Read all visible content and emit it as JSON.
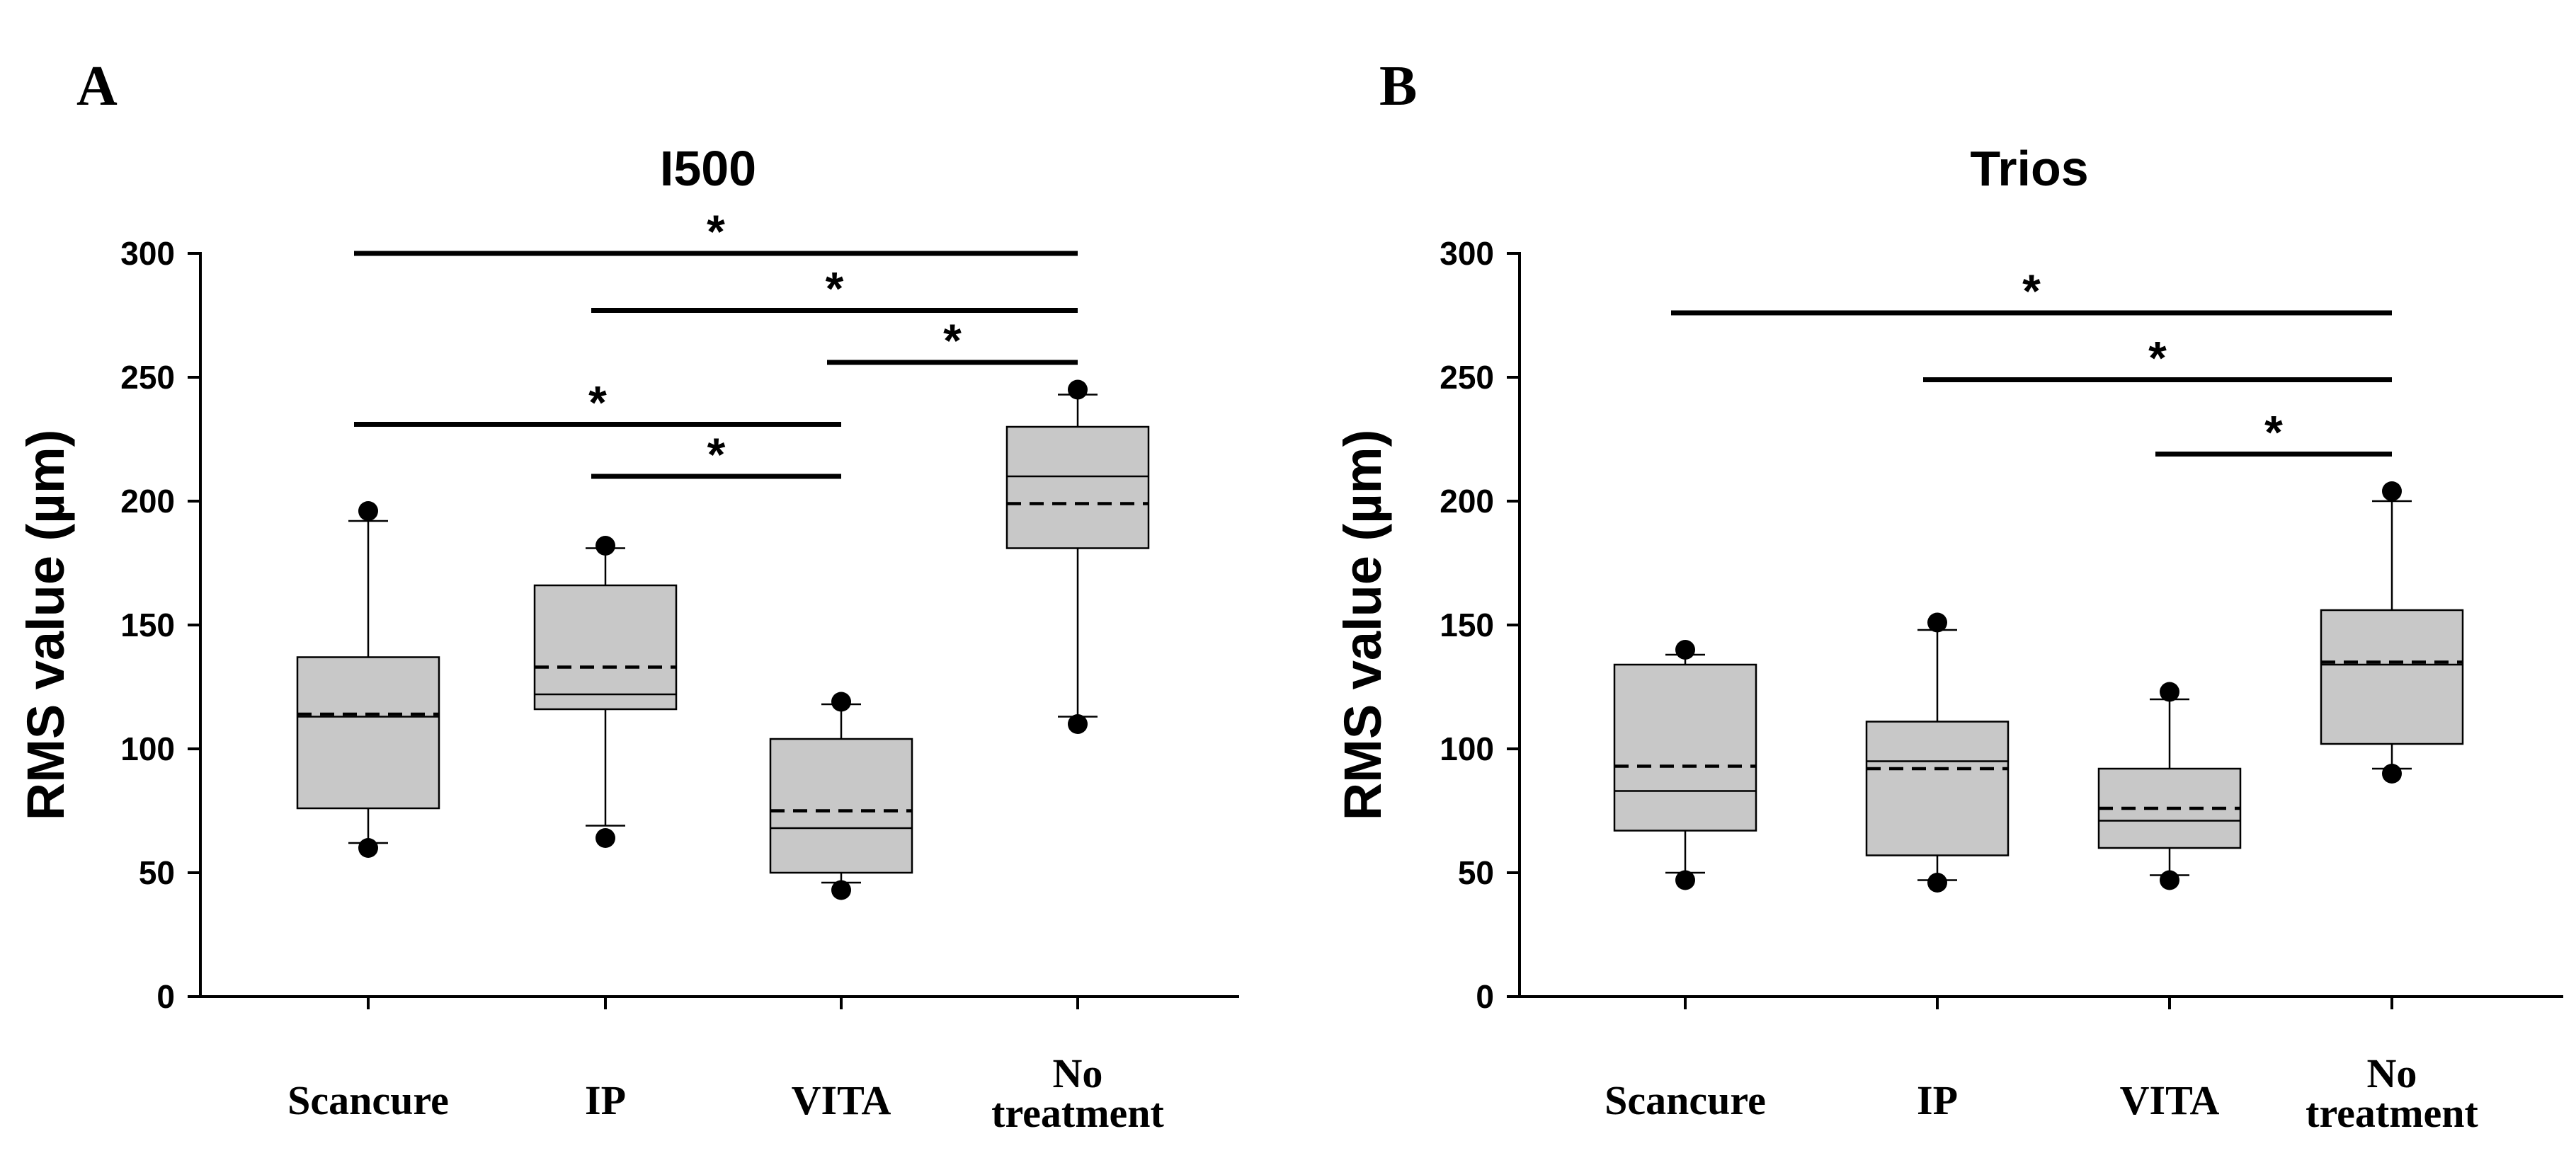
{
  "chart_data": [
    {
      "type": "box",
      "panel": "A",
      "title": "I500",
      "xlabel": "",
      "ylabel": "RMS value (µm)",
      "ylim": [
        0,
        300
      ],
      "yticks": [
        0,
        50,
        100,
        150,
        200,
        250,
        300
      ],
      "categories": [
        {
          "label": "Scancure",
          "lines": [
            "Scancure"
          ]
        },
        {
          "label": "IP",
          "lines": [
            "IP"
          ]
        },
        {
          "label": "VITA",
          "lines": [
            "VITA"
          ]
        },
        {
          "label": "No treatment",
          "lines": [
            "No",
            "treatment"
          ]
        }
      ],
      "boxes": [
        {
          "whisker_low": 62,
          "q1": 76,
          "median": 113,
          "mean": 114,
          "q3": 137,
          "whisker_high": 192,
          "outlier_low": 60,
          "outlier_high": 196
        },
        {
          "whisker_low": 69,
          "q1": 116,
          "median": 122,
          "mean": 133,
          "q3": 166,
          "whisker_high": 181,
          "outlier_low": 64,
          "outlier_high": 182
        },
        {
          "whisker_low": 46,
          "q1": 50,
          "median": 68,
          "mean": 75,
          "q3": 104,
          "whisker_high": 118,
          "outlier_low": 43,
          "outlier_high": 119
        },
        {
          "whisker_low": 113,
          "q1": 181,
          "median": 210,
          "mean": 199,
          "q3": 230,
          "whisker_high": 243,
          "outlier_low": 110,
          "outlier_high": 245
        }
      ],
      "significance": [
        {
          "from": 0,
          "to": 3,
          "y": 300,
          "label": "*"
        },
        {
          "from": 1,
          "to": 3,
          "y": 277,
          "label": "*"
        },
        {
          "from": 2,
          "to": 3,
          "y": 256,
          "label": "*"
        },
        {
          "from": 0,
          "to": 2,
          "y": 231,
          "label": "*"
        },
        {
          "from": 1,
          "to": 2,
          "y": 210,
          "label": "*"
        }
      ]
    },
    {
      "type": "box",
      "panel": "B",
      "title": "Trios",
      "xlabel": "",
      "ylabel": "RMS value (µm)",
      "ylim": [
        0,
        300
      ],
      "yticks": [
        0,
        50,
        100,
        150,
        200,
        250,
        300
      ],
      "categories": [
        {
          "label": "Scancure",
          "lines": [
            "Scancure"
          ]
        },
        {
          "label": "IP",
          "lines": [
            "IP"
          ]
        },
        {
          "label": "VITA",
          "lines": [
            "VITA"
          ]
        },
        {
          "label": "No treatment",
          "lines": [
            "No",
            "treatment"
          ]
        }
      ],
      "boxes": [
        {
          "whisker_low": 50,
          "q1": 67,
          "median": 83,
          "mean": 93,
          "q3": 134,
          "whisker_high": 138,
          "outlier_low": 47,
          "outlier_high": 140
        },
        {
          "whisker_low": 47,
          "q1": 57,
          "median": 95,
          "mean": 92,
          "q3": 111,
          "whisker_high": 148,
          "outlier_low": 46,
          "outlier_high": 151
        },
        {
          "whisker_low": 49,
          "q1": 60,
          "median": 71,
          "mean": 76,
          "q3": 92,
          "whisker_high": 120,
          "outlier_low": 47,
          "outlier_high": 123
        },
        {
          "whisker_low": 92,
          "q1": 102,
          "median": 134,
          "mean": 135,
          "q3": 156,
          "whisker_high": 200,
          "outlier_low": 90,
          "outlier_high": 204
        }
      ],
      "significance": [
        {
          "from": 0,
          "to": 3,
          "y": 276,
          "label": "*"
        },
        {
          "from": 1,
          "to": 3,
          "y": 249,
          "label": "*"
        },
        {
          "from": 2,
          "to": 3,
          "y": 219,
          "label": "*"
        }
      ]
    }
  ]
}
